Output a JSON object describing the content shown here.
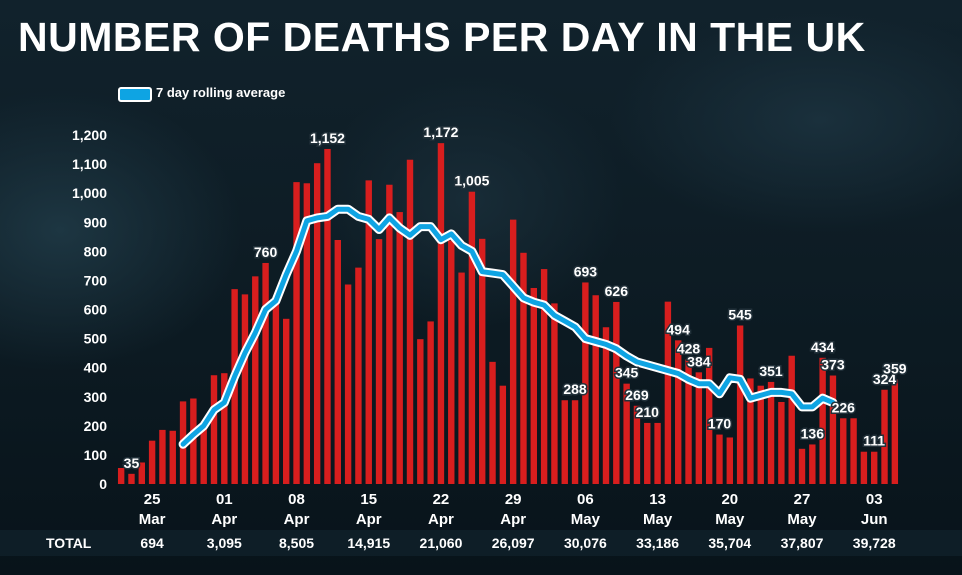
{
  "title": "NUMBER OF DEATHS PER DAY IN THE UK",
  "legend": {
    "label": "7 day rolling average"
  },
  "colors": {
    "bar": "#d81e1e",
    "average_line": "#0ea4e3",
    "outline": "#ffffff"
  },
  "chart_data": {
    "type": "bar",
    "title": "NUMBER OF DEATHS PER DAY IN THE UK",
    "xlabel": "",
    "ylabel": "",
    "ylim": [
      0,
      1200
    ],
    "yticks": [
      "0",
      "100",
      "200",
      "300",
      "400",
      "500",
      "600",
      "700",
      "800",
      "900",
      "1,000",
      "1,100",
      "1,200"
    ],
    "ytick_values": [
      0,
      100,
      200,
      300,
      400,
      500,
      600,
      700,
      800,
      900,
      1000,
      1100,
      1200
    ],
    "x_start": "22 Mar",
    "grid": false,
    "series": [
      {
        "name": "Deaths per day",
        "type": "bar",
        "values": [
          55,
          35,
          74,
          149,
          186,
          183,
          284,
          294,
          214,
          374,
          381,
          670,
          652,
          714,
          760,
          644,
          568,
          1038,
          1034,
          1103,
          1152,
          839,
          686,
          744,
          1044,
          842,
          1029,
          935,
          1115,
          498,
          559,
          1172,
          837,
          727,
          1005,
          843,
          420,
          338,
          909,
          795,
          674,
          739,
          621,
          288,
          288,
          693,
          649,
          539,
          626,
          345,
          269,
          210,
          210,
          627,
          494,
          428,
          384,
          468,
          170,
          160,
          545,
          363,
          338,
          351,
          282,
          441,
          121,
          136,
          434,
          373,
          226,
          226,
          111,
          111,
          324,
          359
        ]
      },
      {
        "name": "7 day rolling average",
        "type": "line",
        "start_index": 6,
        "values": [
          137,
          170,
          200,
          255,
          280,
          370,
          450,
          520,
          600,
          630,
          720,
          800,
          905,
          915,
          920,
          945,
          945,
          920,
          910,
          875,
          915,
          880,
          855,
          885,
          885,
          840,
          860,
          820,
          800,
          730,
          725,
          720,
          680,
          640,
          625,
          615,
          580,
          560,
          540,
          500,
          490,
          480,
          465,
          440,
          420,
          410,
          400,
          390,
          380,
          360,
          345,
          345,
          310,
          365,
          360,
          295,
          305,
          315,
          315,
          310,
          265,
          265,
          295,
          280
        ]
      }
    ],
    "data_labels": [
      {
        "index": 1,
        "label": "35"
      },
      {
        "index": 14,
        "label": "760"
      },
      {
        "index": 20,
        "label": "1,152"
      },
      {
        "index": 31,
        "label": "1,172"
      },
      {
        "index": 34,
        "label": "1,005"
      },
      {
        "index": 44,
        "label": "288"
      },
      {
        "index": 45,
        "label": "693"
      },
      {
        "index": 48,
        "label": "626"
      },
      {
        "index": 49,
        "label": "345"
      },
      {
        "index": 50,
        "label": "269"
      },
      {
        "index": 51,
        "label": "210"
      },
      {
        "index": 54,
        "label": "494"
      },
      {
        "index": 55,
        "label": "428"
      },
      {
        "index": 56,
        "label": "384"
      },
      {
        "index": 58,
        "label": "170"
      },
      {
        "index": 60,
        "label": "545"
      },
      {
        "index": 63,
        "label": "351"
      },
      {
        "index": 67,
        "label": "136"
      },
      {
        "index": 68,
        "label": "434"
      },
      {
        "index": 69,
        "label": "373"
      },
      {
        "index": 70,
        "label": "226"
      },
      {
        "index": 73,
        "label": "111"
      },
      {
        "index": 74,
        "label": "324"
      },
      {
        "index": 75,
        "label": "359"
      }
    ],
    "x_ticks": [
      {
        "index": 3,
        "day": "25",
        "month": "Mar"
      },
      {
        "index": 10,
        "day": "01",
        "month": "Apr"
      },
      {
        "index": 17,
        "day": "08",
        "month": "Apr"
      },
      {
        "index": 24,
        "day": "15",
        "month": "Apr"
      },
      {
        "index": 31,
        "day": "22",
        "month": "Apr"
      },
      {
        "index": 38,
        "day": "29",
        "month": "Apr"
      },
      {
        "index": 45,
        "day": "06",
        "month": "May"
      },
      {
        "index": 52,
        "day": "13",
        "month": "May"
      },
      {
        "index": 59,
        "day": "20",
        "month": "May"
      },
      {
        "index": 66,
        "day": "27",
        "month": "May"
      },
      {
        "index": 73,
        "day": "03",
        "month": "Jun"
      }
    ],
    "totals_label": "TOTAL",
    "totals": [
      "694",
      "3,095",
      "8,505",
      "14,915",
      "21,060",
      "26,097",
      "30,076",
      "33,186",
      "35,704",
      "37,807",
      "39,728"
    ]
  }
}
